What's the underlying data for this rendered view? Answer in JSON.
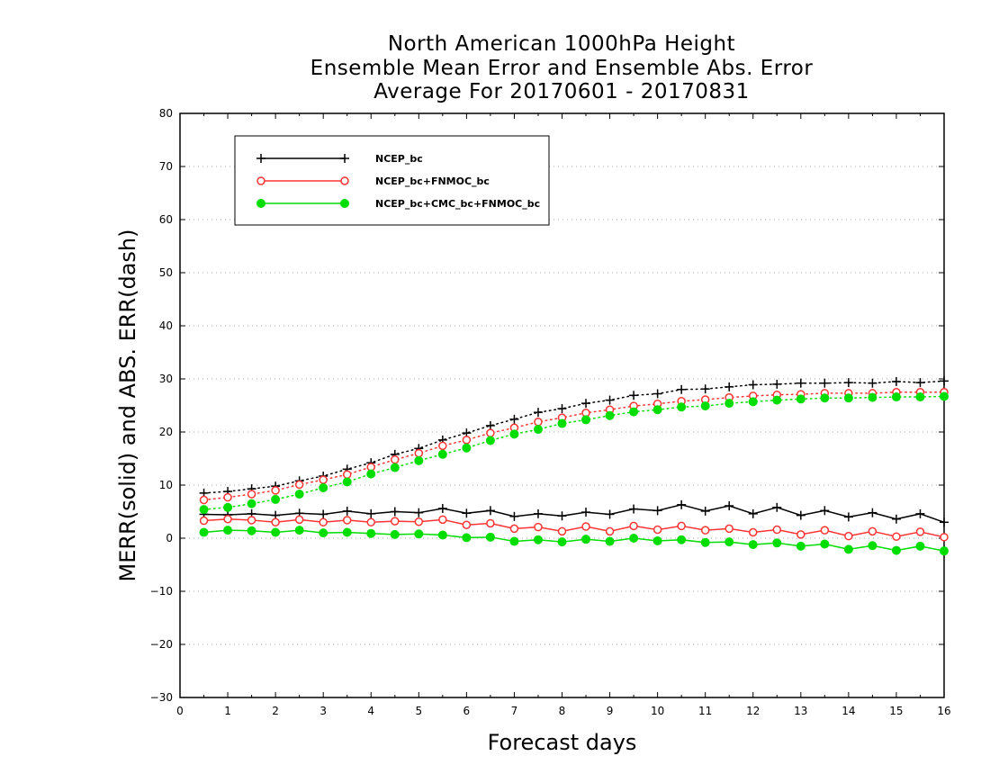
{
  "chart_data": {
    "type": "line",
    "title": "North American 1000hPa Height",
    "subtitle": "Ensemble Mean Error and Ensemble Abs. Error",
    "period": "Average For 20170601 - 20170831",
    "xlabel": "Forecast days",
    "ylabel": "MERR(solid) and ABS. ERR(dash)",
    "xlim": [
      0,
      16
    ],
    "ylim": [
      -30,
      80
    ],
    "xticks": [
      "0",
      "1",
      "2",
      "3",
      "4",
      "5",
      "6",
      "7",
      "8",
      "9",
      "10",
      "11",
      "12",
      "13",
      "14",
      "15",
      "16"
    ],
    "yticks": [
      "−30",
      "−20",
      "−10",
      "0",
      "10",
      "20",
      "30",
      "40",
      "50",
      "60",
      "70",
      "80"
    ],
    "grid": "horizontal dotted",
    "legend_position": "top-left",
    "x": [
      0.5,
      1,
      1.5,
      2,
      2.5,
      3,
      3.5,
      4,
      4.5,
      5,
      5.5,
      6,
      6.5,
      7,
      7.5,
      8,
      8.5,
      9,
      9.5,
      10,
      10.5,
      11,
      11.5,
      12,
      12.5,
      13,
      13.5,
      14,
      14.5,
      15,
      15.5,
      16
    ],
    "series": [
      {
        "name": "NCEP_bc",
        "color": "#000000",
        "marker": "plus",
        "merr": [
          4.5,
          4.4,
          4.6,
          4.3,
          4.7,
          4.5,
          5.1,
          4.6,
          5.0,
          4.8,
          5.6,
          4.7,
          5.2,
          4.1,
          4.6,
          4.2,
          4.9,
          4.5,
          5.5,
          5.2,
          6.3,
          5.1,
          6.1,
          4.6,
          5.8,
          4.3,
          5.2,
          4.0,
          4.8,
          3.6,
          4.6,
          3.0
        ],
        "abs_err": [
          8.5,
          8.8,
          9.3,
          9.8,
          10.8,
          11.7,
          13.0,
          14.2,
          15.8,
          16.9,
          18.5,
          19.8,
          21.2,
          22.4,
          23.7,
          24.4,
          25.4,
          26.0,
          26.9,
          27.2,
          28.0,
          28.1,
          28.5,
          28.9,
          29.0,
          29.2,
          29.2,
          29.3,
          29.2,
          29.5,
          29.3,
          29.6
        ]
      },
      {
        "name": "NCEP_bc+FNMOC_bc",
        "color": "#ff3333",
        "marker": "open-circle",
        "merr": [
          3.3,
          3.6,
          3.4,
          3.0,
          3.5,
          3.0,
          3.4,
          3.0,
          3.2,
          3.1,
          3.5,
          2.5,
          2.8,
          1.8,
          2.1,
          1.3,
          2.2,
          1.3,
          2.3,
          1.6,
          2.3,
          1.5,
          1.8,
          1.1,
          1.6,
          0.7,
          1.5,
          0.4,
          1.3,
          0.3,
          1.2,
          0.2
        ],
        "abs_err": [
          7.2,
          7.7,
          8.3,
          9.0,
          10.1,
          11.0,
          12.0,
          13.4,
          14.8,
          16.0,
          17.4,
          18.5,
          19.8,
          20.8,
          21.9,
          22.7,
          23.6,
          24.2,
          24.9,
          25.3,
          25.8,
          26.1,
          26.5,
          26.8,
          27.0,
          27.1,
          27.3,
          27.3,
          27.3,
          27.5,
          27.5,
          27.5
        ]
      },
      {
        "name": "NCEP_bc+CMC_bc+FNMOC_bc",
        "color": "#00dd00",
        "marker": "filled-circle",
        "merr": [
          1.1,
          1.5,
          1.4,
          1.1,
          1.5,
          1.0,
          1.1,
          0.9,
          0.7,
          0.8,
          0.6,
          0.1,
          0.2,
          -0.6,
          -0.3,
          -0.7,
          -0.2,
          -0.6,
          0.0,
          -0.5,
          -0.3,
          -0.8,
          -0.7,
          -1.2,
          -0.9,
          -1.5,
          -1.1,
          -2.1,
          -1.4,
          -2.3,
          -1.5,
          -2.4
        ],
        "abs_err": [
          5.4,
          5.8,
          6.5,
          7.3,
          8.3,
          9.5,
          10.6,
          12.1,
          13.3,
          14.6,
          15.8,
          17.0,
          18.4,
          19.6,
          20.5,
          21.6,
          22.3,
          23.1,
          23.8,
          24.2,
          24.7,
          24.9,
          25.4,
          25.7,
          26.0,
          26.2,
          26.4,
          26.4,
          26.5,
          26.6,
          26.6,
          26.7
        ]
      }
    ]
  }
}
